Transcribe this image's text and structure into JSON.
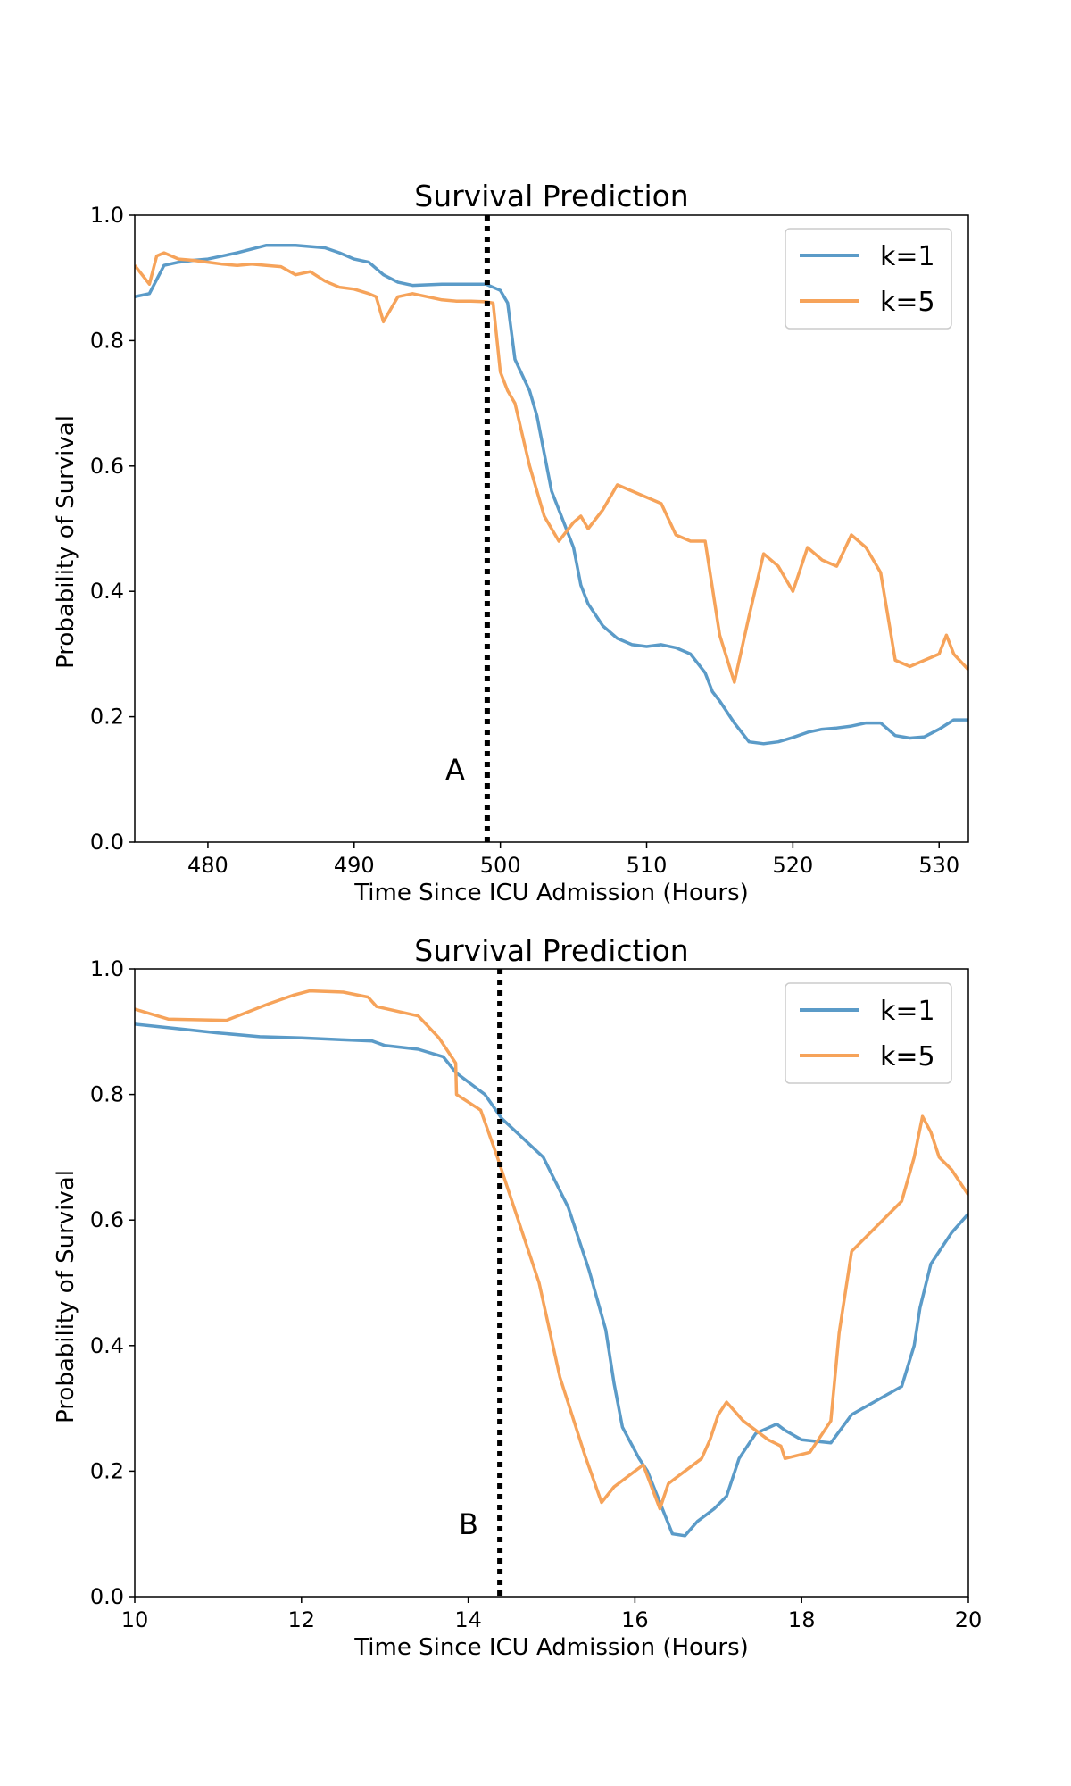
{
  "chart_data": [
    {
      "type": "line",
      "title": "Survival Prediction",
      "xlabel": "Time Since ICU Admission (Hours)",
      "ylabel": "Probability of Survival",
      "xlim": [
        475,
        532
      ],
      "ylim": [
        0,
        1
      ],
      "xticks": [
        480,
        490,
        500,
        510,
        520,
        530
      ],
      "yticks": [
        0.0,
        0.2,
        0.4,
        0.6,
        0.8,
        1.0
      ],
      "xtick_labels": [
        "480",
        "490",
        "500",
        "510",
        "520",
        "530"
      ],
      "ytick_labels": [
        "0.0",
        "0.2",
        "0.4",
        "0.6",
        "0.8",
        "1.0"
      ],
      "vline": {
        "x": 499.1,
        "label": "A"
      },
      "legend": "top-right",
      "series": [
        {
          "name": "k=1",
          "color": "#5b9bc8",
          "x": [
            475,
            476,
            477,
            478,
            479,
            480,
            482,
            484,
            486,
            488,
            489,
            490,
            491,
            492,
            493,
            494,
            496,
            498,
            499,
            500,
            500.5,
            501,
            502,
            502.5,
            503,
            503.5,
            504,
            505,
            505.5,
            506,
            507,
            508,
            509,
            510,
            511,
            512,
            513,
            514,
            514.5,
            515,
            516,
            517,
            518,
            519,
            520,
            521,
            522,
            523,
            524,
            525,
            526,
            526.5,
            527,
            528,
            529,
            530,
            531,
            532
          ],
          "y": [
            0.87,
            0.875,
            0.92,
            0.925,
            0.928,
            0.93,
            0.94,
            0.952,
            0.952,
            0.948,
            0.94,
            0.93,
            0.925,
            0.905,
            0.893,
            0.888,
            0.89,
            0.89,
            0.89,
            0.88,
            0.86,
            0.77,
            0.72,
            0.68,
            0.62,
            0.56,
            0.53,
            0.47,
            0.41,
            0.38,
            0.345,
            0.325,
            0.315,
            0.312,
            0.315,
            0.31,
            0.3,
            0.27,
            0.24,
            0.225,
            0.19,
            0.16,
            0.157,
            0.16,
            0.167,
            0.175,
            0.18,
            0.182,
            0.185,
            0.19,
            0.19,
            0.18,
            0.17,
            0.166,
            0.168,
            0.18,
            0.195,
            0.195
          ]
        },
        {
          "name": "k=5",
          "color": "#f6a35a",
          "x": [
            475,
            476,
            476.5,
            477,
            478,
            479,
            480,
            481,
            482,
            483,
            484,
            485,
            486,
            487,
            488,
            489,
            490,
            491,
            491.5,
            492,
            493,
            494,
            495,
            496,
            497,
            498,
            499,
            499.5,
            500,
            500.5,
            501,
            502,
            503,
            504,
            505,
            505.5,
            506,
            507,
            508,
            509,
            510,
            511,
            512,
            513,
            514,
            515,
            516,
            517,
            518,
            519,
            520,
            521,
            522,
            523,
            524,
            525,
            526,
            527,
            528,
            529,
            530,
            530.5,
            531,
            532
          ],
          "y": [
            0.92,
            0.89,
            0.935,
            0.94,
            0.93,
            0.928,
            0.925,
            0.922,
            0.92,
            0.922,
            0.92,
            0.918,
            0.905,
            0.91,
            0.895,
            0.885,
            0.882,
            0.875,
            0.87,
            0.83,
            0.87,
            0.875,
            0.87,
            0.865,
            0.863,
            0.863,
            0.862,
            0.86,
            0.75,
            0.72,
            0.7,
            0.6,
            0.52,
            0.48,
            0.51,
            0.52,
            0.5,
            0.53,
            0.57,
            0.56,
            0.55,
            0.54,
            0.49,
            0.48,
            0.48,
            0.33,
            0.255,
            0.36,
            0.46,
            0.44,
            0.4,
            0.47,
            0.45,
            0.44,
            0.49,
            0.47,
            0.43,
            0.29,
            0.28,
            0.29,
            0.3,
            0.33,
            0.3,
            0.275
          ]
        }
      ]
    },
    {
      "type": "line",
      "title": "Survival Prediction",
      "xlabel": "Time Since ICU Admission (Hours)",
      "ylabel": "Probability of Survival",
      "xlim": [
        10,
        20
      ],
      "ylim": [
        0,
        1
      ],
      "xticks": [
        10,
        12,
        14,
        16,
        18,
        20
      ],
      "yticks": [
        0.0,
        0.2,
        0.4,
        0.6,
        0.8,
        1.0
      ],
      "xtick_labels": [
        "10",
        "12",
        "14",
        "16",
        "18",
        "20"
      ],
      "ytick_labels": [
        "0.0",
        "0.2",
        "0.4",
        "0.6",
        "0.8",
        "1.0"
      ],
      "vline": {
        "x": 14.38,
        "label": "B"
      },
      "legend": "top-right",
      "series": [
        {
          "name": "k=1",
          "color": "#5b9bc8",
          "x": [
            10,
            10.5,
            11,
            11.5,
            12,
            12.5,
            12.85,
            13,
            13.4,
            13.7,
            13.85,
            14.2,
            14.4,
            14.9,
            15.2,
            15.45,
            15.65,
            15.75,
            15.85,
            16.05,
            16.15,
            16.3,
            16.45,
            16.6,
            16.75,
            16.95,
            17.1,
            17.25,
            17.45,
            17.7,
            17.8,
            18,
            18.35,
            18.6,
            19.2,
            19.35,
            19.42,
            19.55,
            19.8,
            20
          ],
          "y": [
            0.912,
            0.905,
            0.898,
            0.892,
            0.89,
            0.887,
            0.885,
            0.878,
            0.872,
            0.86,
            0.835,
            0.8,
            0.762,
            0.7,
            0.62,
            0.52,
            0.425,
            0.34,
            0.27,
            0.22,
            0.2,
            0.15,
            0.1,
            0.097,
            0.12,
            0.14,
            0.16,
            0.22,
            0.26,
            0.275,
            0.265,
            0.25,
            0.245,
            0.29,
            0.335,
            0.4,
            0.46,
            0.53,
            0.58,
            0.61
          ]
        },
        {
          "name": "k=5",
          "color": "#f6a35a",
          "x": [
            10,
            10.4,
            11.1,
            11.6,
            11.9,
            12.1,
            12.5,
            12.8,
            12.9,
            13.4,
            13.65,
            13.85,
            13.86,
            14.15,
            14.35,
            14.6,
            14.85,
            15.1,
            15.4,
            15.6,
            15.75,
            16.1,
            16.3,
            16.4,
            16.5,
            16.8,
            16.9,
            17,
            17.1,
            17.3,
            17.6,
            17.75,
            17.8,
            18.1,
            18.35,
            18.45,
            18.6,
            19.2,
            19.35,
            19.45,
            19.55,
            19.65,
            19.8,
            20
          ],
          "y": [
            0.936,
            0.92,
            0.918,
            0.944,
            0.958,
            0.965,
            0.963,
            0.955,
            0.94,
            0.925,
            0.89,
            0.85,
            0.8,
            0.775,
            0.7,
            0.6,
            0.5,
            0.35,
            0.225,
            0.15,
            0.175,
            0.21,
            0.14,
            0.18,
            0.19,
            0.22,
            0.25,
            0.29,
            0.31,
            0.28,
            0.25,
            0.24,
            0.22,
            0.23,
            0.28,
            0.42,
            0.55,
            0.63,
            0.7,
            0.765,
            0.74,
            0.7,
            0.68,
            0.64
          ]
        }
      ]
    }
  ]
}
